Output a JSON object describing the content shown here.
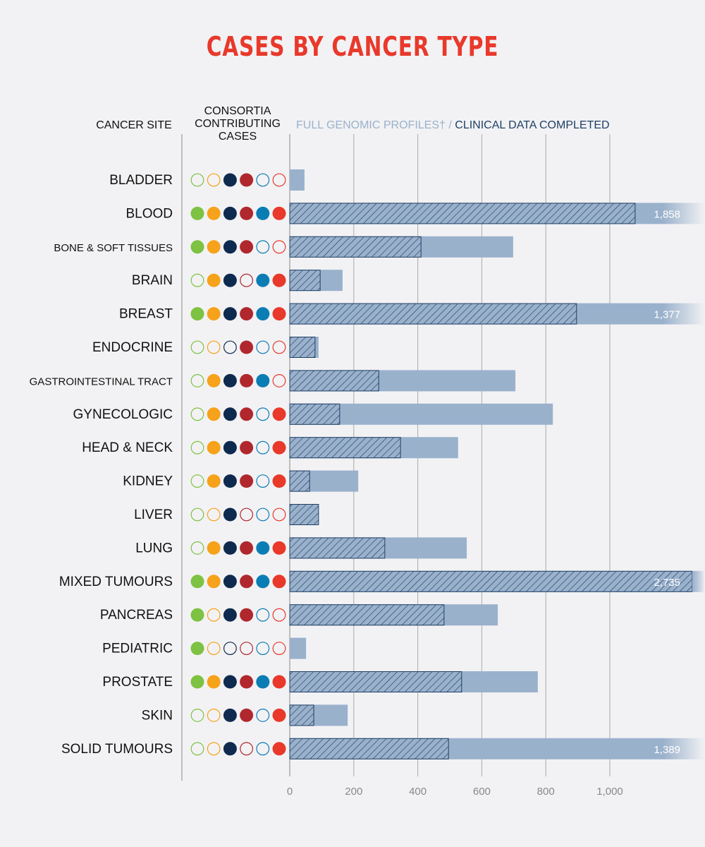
{
  "title": "CASES BY CANCER TYPE",
  "headers": {
    "site": "CANCER SITE",
    "consortia": "CONSORTIA CONTRIBUTING CASES",
    "genomic": "FULL GENOMIC PROFILES†",
    "separator": "/",
    "clinical": "CLINICAL DATA COMPLETED"
  },
  "consortia_colors": [
    "#7dc242",
    "#f7a21b",
    "#0e2a4f",
    "#b0282d",
    "#0b7db5",
    "#e8392b"
  ],
  "colors": {
    "genomic": "#9ab1cc",
    "clinical_hatch": "#1f3f64",
    "title": "#e8392b"
  },
  "chart_data": {
    "type": "bar",
    "orientation": "horizontal",
    "categories": [
      "BLADDER",
      "BLOOD",
      "BONE & SOFT TISSUES",
      "BRAIN",
      "BREAST",
      "ENDOCRINE",
      "GASTROINTESTINAL TRACT",
      "GYNECOLOGIC",
      "HEAD & NECK",
      "KIDNEY",
      "LIVER",
      "LUNG",
      "MIXED TUMOURS",
      "PANCREAS",
      "PEDIATRIC",
      "PROSTATE",
      "SKIN",
      "SOLID TUMOURS"
    ],
    "series": [
      {
        "name": "FULL GENOMIC PROFILES†",
        "values": [
          46,
          1858,
          698,
          165,
          1377,
          90,
          705,
          822,
          526,
          214,
          90,
          553,
          2735,
          650,
          51,
          775,
          181,
          1389
        ]
      },
      {
        "name": "CLINICAL DATA COMPLETED",
        "values": [
          0,
          1079,
          410,
          95,
          896,
          79,
          278,
          156,
          346,
          62,
          90,
          297,
          2735,
          482,
          0,
          537,
          75,
          496
        ]
      }
    ],
    "data_labels": [
      null,
      "1,858",
      null,
      null,
      "1,377",
      null,
      null,
      null,
      null,
      null,
      null,
      null,
      "2,735",
      null,
      null,
      null,
      null,
      "1,389"
    ],
    "consortia": [
      [
        0,
        0,
        1,
        1,
        0,
        0
      ],
      [
        1,
        1,
        1,
        1,
        1,
        1
      ],
      [
        1,
        1,
        1,
        1,
        0,
        0
      ],
      [
        0,
        1,
        1,
        0,
        1,
        1
      ],
      [
        1,
        1,
        1,
        1,
        1,
        1
      ],
      [
        0,
        0,
        0,
        1,
        0,
        0
      ],
      [
        0,
        1,
        1,
        1,
        1,
        0
      ],
      [
        0,
        1,
        1,
        1,
        0,
        1
      ],
      [
        0,
        1,
        1,
        1,
        0,
        1
      ],
      [
        0,
        1,
        1,
        1,
        0,
        1
      ],
      [
        0,
        0,
        1,
        0,
        0,
        0
      ],
      [
        0,
        1,
        1,
        1,
        1,
        1
      ],
      [
        1,
        1,
        1,
        1,
        1,
        1
      ],
      [
        1,
        0,
        1,
        1,
        0,
        0
      ],
      [
        1,
        0,
        0,
        0,
        0,
        0
      ],
      [
        1,
        1,
        1,
        1,
        1,
        1
      ],
      [
        0,
        0,
        1,
        1,
        0,
        1
      ],
      [
        0,
        0,
        1,
        0,
        0,
        1
      ]
    ],
    "xticks": [
      0,
      200,
      400,
      600,
      800,
      1000
    ],
    "xtick_labels": [
      "0",
      "200",
      "400",
      "600",
      "800",
      "1,000"
    ],
    "xlim": [
      0,
      1300
    ],
    "axis_break": true,
    "grid": true
  }
}
